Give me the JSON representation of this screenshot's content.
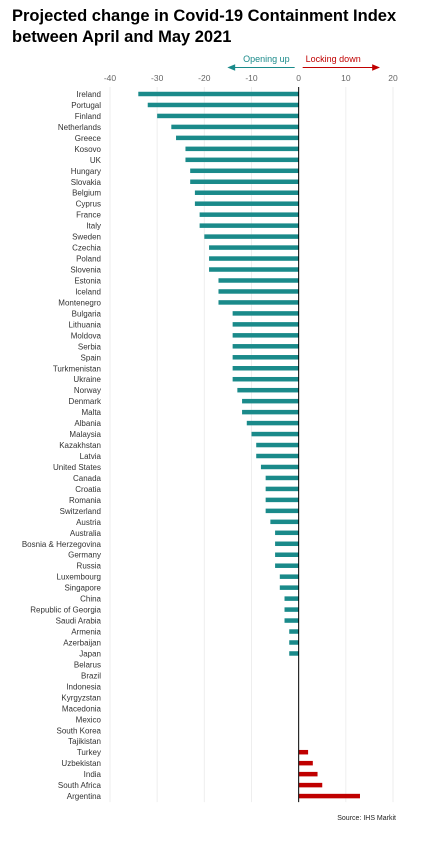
{
  "title": "Projected change in Covid-19 Containment Index between April and May 2021",
  "source": "Source: IHS Markit",
  "legend": {
    "opening_label": "Opening up",
    "locking_label": "Locking down",
    "opening_color": "#1a8a8a",
    "locking_color": "#c00000"
  },
  "chart_data": {
    "type": "bar",
    "orientation": "horizontal",
    "title": "Projected change in Covid-19 Containment Index between April and May 2021",
    "xlabel": "",
    "ylabel": "",
    "xlim": [
      -40,
      20
    ],
    "xticks": [
      -40,
      -30,
      -20,
      -10,
      0,
      10,
      20
    ],
    "grid": true,
    "categories": [
      "Ireland",
      "Portugal",
      "Finland",
      "Netherlands",
      "Greece",
      "Kosovo",
      "UK",
      "Hungary",
      "Slovakia",
      "Belgium",
      "Cyprus",
      "France",
      "Italy",
      "Sweden",
      "Czechia",
      "Poland",
      "Slovenia",
      "Estonia",
      "Iceland",
      "Montenegro",
      "Bulgaria",
      "Lithuania",
      "Moldova",
      "Serbia",
      "Spain",
      "Turkmenistan",
      "Ukraine",
      "Norway",
      "Denmark",
      "Malta",
      "Albania",
      "Malaysia",
      "Kazakhstan",
      "Latvia",
      "United States",
      "Canada",
      "Croatia",
      "Romania",
      "Switzerland",
      "Austria",
      "Australia",
      "Bosnia & Herzegovina",
      "Germany",
      "Russia",
      "Luxembourg",
      "Singapore",
      "China",
      "Republic of Georgia",
      "Saudi Arabia",
      "Armenia",
      "Azerbaijan",
      "Japan",
      "Belarus",
      "Brazil",
      "Indonesia",
      "Kyrgyzstan",
      "Macedonia",
      "Mexico",
      "South Korea",
      "Tajikistan",
      "Turkey",
      "Uzbekistan",
      "India",
      "South Africa",
      "Argentina"
    ],
    "values": [
      -34,
      -32,
      -30,
      -27,
      -26,
      -24,
      -24,
      -23,
      -23,
      -22,
      -22,
      -21,
      -21,
      -20,
      -19,
      -19,
      -19,
      -17,
      -17,
      -17,
      -14,
      -14,
      -14,
      -14,
      -14,
      -14,
      -14,
      -13,
      -12,
      -12,
      -11,
      -10,
      -9,
      -9,
      -8,
      -7,
      -7,
      -7,
      -7,
      -6,
      -5,
      -5,
      -5,
      -5,
      -4,
      -4,
      -3,
      -3,
      -3,
      -2,
      -2,
      -2,
      0,
      0,
      0,
      0,
      0,
      0,
      0,
      0,
      2,
      3,
      4,
      5,
      13
    ]
  }
}
